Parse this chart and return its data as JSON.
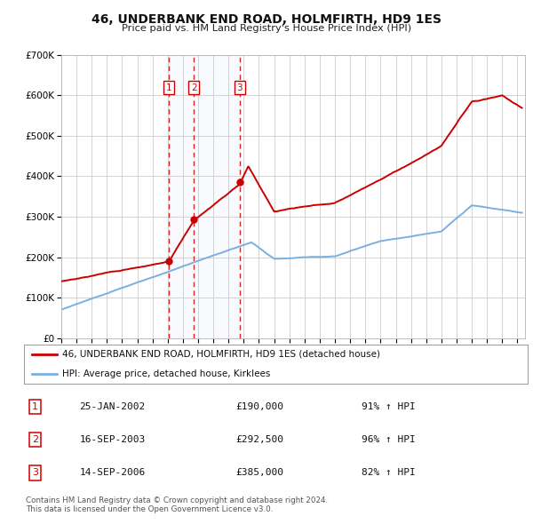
{
  "title": "46, UNDERBANK END ROAD, HOLMFIRTH, HD9 1ES",
  "subtitle": "Price paid vs. HM Land Registry's House Price Index (HPI)",
  "background_color": "#ffffff",
  "plot_bg_color": "#ffffff",
  "grid_color": "#cccccc",
  "ylim": [
    0,
    700000
  ],
  "yticks": [
    0,
    100000,
    200000,
    300000,
    400000,
    500000,
    600000,
    700000
  ],
  "hpi_color": "#7ab0e0",
  "price_color": "#cc0000",
  "vline_color": "#cc0000",
  "vshade_color": "#dde8f5",
  "legend_label_price": "46, UNDERBANK END ROAD, HOLMFIRTH, HD9 1ES (detached house)",
  "legend_label_hpi": "HPI: Average price, detached house, Kirklees",
  "sales": [
    {
      "num": 1,
      "date_num": 2002.07,
      "price": 190000,
      "date_str": "25-JAN-2002",
      "pct": "91%",
      "arrow": "↑"
    },
    {
      "num": 2,
      "date_num": 2003.72,
      "price": 292500,
      "date_str": "16-SEP-2003",
      "pct": "96%",
      "arrow": "↑"
    },
    {
      "num": 3,
      "date_num": 2006.72,
      "price": 385000,
      "date_str": "14-SEP-2006",
      "pct": "82%",
      "arrow": "↑"
    }
  ],
  "footer_line1": "Contains HM Land Registry data © Crown copyright and database right 2024.",
  "footer_line2": "This data is licensed under the Open Government Licence v3.0.",
  "xmin": 1995.0,
  "xmax": 2025.5
}
